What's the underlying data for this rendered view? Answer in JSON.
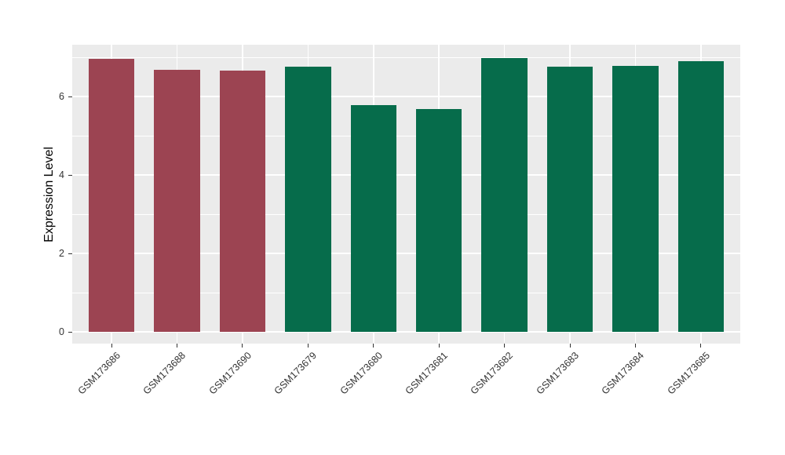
{
  "chart_data": {
    "type": "bar",
    "title": "",
    "xlabel": "",
    "ylabel": "Expression Level",
    "categories": [
      "GSM173686",
      "GSM173688",
      "GSM173690",
      "GSM173679",
      "GSM173680",
      "GSM173681",
      "GSM173682",
      "GSM173683",
      "GSM173684",
      "GSM173685"
    ],
    "values": [
      6.96,
      6.69,
      6.67,
      6.77,
      5.78,
      5.68,
      6.99,
      6.77,
      6.79,
      6.91
    ],
    "groups": [
      0,
      0,
      0,
      1,
      1,
      1,
      1,
      1,
      1,
      1
    ],
    "group_colors": [
      "#9C4452",
      "#066C4B"
    ],
    "yticks": [
      0,
      2,
      4,
      6
    ],
    "yminor": [
      1,
      3,
      5,
      7
    ],
    "ylim": [
      -0.3,
      7.32
    ],
    "bar_rel_width": 0.7,
    "grid_on": true,
    "legend_position": "none",
    "panel_bg": "#EBEBEB",
    "grid_color": "#FFFFFF",
    "axis_text_color": "#333333",
    "axis_title_color": "#000000"
  }
}
